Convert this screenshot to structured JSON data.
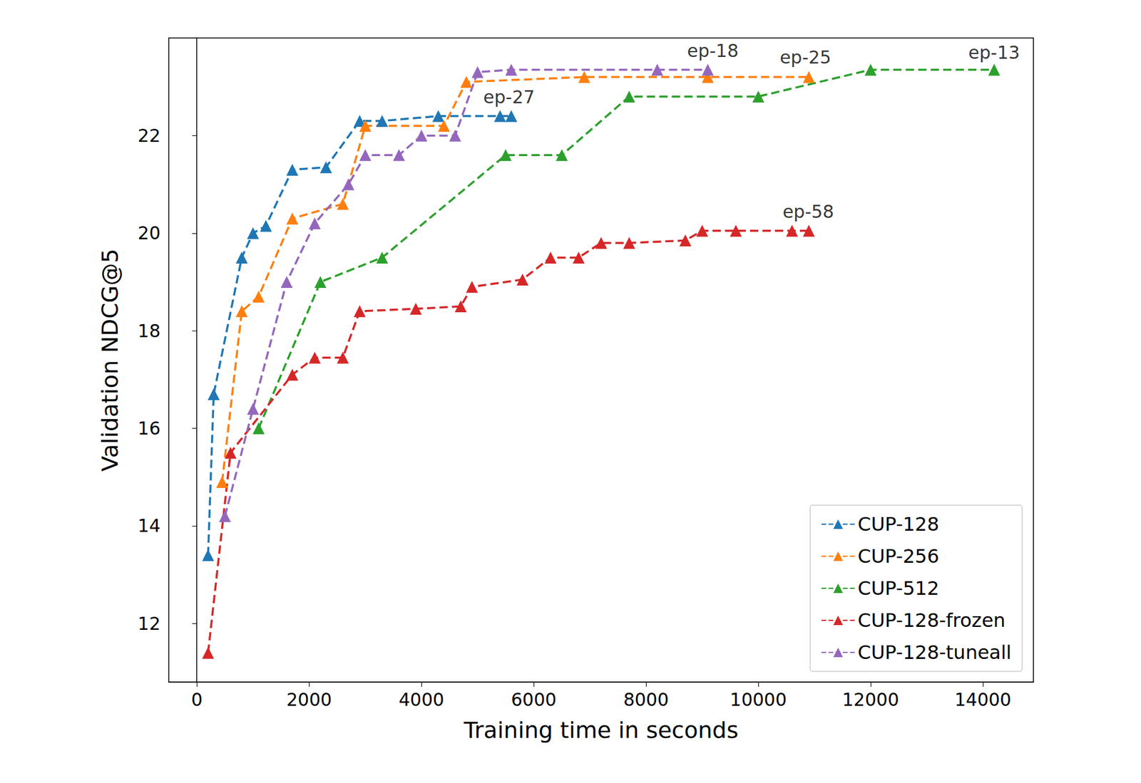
{
  "chart_data": {
    "type": "line",
    "x_label": "Training time in seconds",
    "y_label": "Validation NDCG@5",
    "xlim": [
      -500,
      14900
    ],
    "xticks": [
      0,
      2000,
      4000,
      6000,
      8000,
      10000,
      12000,
      14000
    ],
    "ylim": [
      10.8,
      24.0
    ],
    "yticks": [
      12,
      14,
      16,
      18,
      20,
      22
    ],
    "grid": false,
    "legend": "lower right",
    "marker": "triangle",
    "line_style": "dashed",
    "series": [
      {
        "name": "CUP-128",
        "color": "#1f77b4",
        "x": [
          200,
          300,
          800,
          1000,
          1230,
          1700,
          2300,
          2900,
          3300,
          4300,
          5400,
          5600
        ],
        "values": [
          13.4,
          16.7,
          19.5,
          20.0,
          20.15,
          21.3,
          21.35,
          22.3,
          22.3,
          22.4,
          22.4,
          22.4
        ]
      },
      {
        "name": "CUP-256",
        "color": "#ff7f0e",
        "x": [
          450,
          800,
          1100,
          1700,
          2600,
          3000,
          4400,
          4800,
          6900,
          9100,
          10900
        ],
        "values": [
          14.9,
          18.4,
          18.7,
          20.3,
          20.6,
          22.2,
          22.2,
          23.1,
          23.2,
          23.2,
          23.2
        ]
      },
      {
        "name": "CUP-512",
        "color": "#2ca02c",
        "x": [
          1100,
          2200,
          3300,
          5500,
          6500,
          7700,
          10000,
          12000,
          14200
        ],
        "values": [
          16.0,
          19.0,
          19.5,
          21.6,
          21.6,
          22.8,
          22.8,
          23.35,
          23.35
        ]
      },
      {
        "name": "CUP-128-frozen",
        "color": "#d62728",
        "x": [
          200,
          600,
          1700,
          2100,
          2600,
          2900,
          3900,
          4700,
          4900,
          5800,
          6300,
          6800,
          7200,
          7700,
          8700,
          9000,
          9600,
          10600,
          10900
        ],
        "values": [
          11.4,
          15.5,
          17.1,
          17.45,
          17.45,
          18.4,
          18.45,
          18.5,
          18.9,
          19.05,
          19.5,
          19.5,
          19.8,
          19.8,
          19.85,
          20.05,
          20.05,
          20.05,
          20.05
        ]
      },
      {
        "name": "CUP-128-tuneall",
        "color": "#9467bd",
        "x": [
          500,
          1000,
          1600,
          2100,
          2700,
          3000,
          3600,
          4000,
          4600,
          5000,
          5600,
          8200,
          9100
        ],
        "values": [
          14.2,
          16.4,
          19.0,
          20.2,
          21.0,
          21.6,
          21.6,
          22.0,
          22.0,
          23.3,
          23.35,
          23.35,
          23.35
        ]
      }
    ],
    "annotations": [
      {
        "text": "ep-27",
        "x": 5560,
        "y": 22.79
      },
      {
        "text": "ep-18",
        "x": 9190,
        "y": 23.74
      },
      {
        "text": "ep-25",
        "x": 10840,
        "y": 23.6
      },
      {
        "text": "ep-13",
        "x": 14200,
        "y": 23.7
      },
      {
        "text": "ep-58",
        "x": 10890,
        "y": 20.44
      }
    ]
  }
}
